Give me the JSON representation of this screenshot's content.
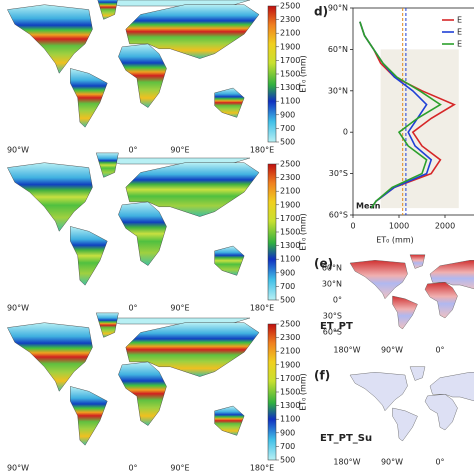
{
  "maps": [
    {
      "colorbar_ticks": [
        500,
        700,
        900,
        1100,
        1300,
        1500,
        1700,
        1900,
        2100,
        2300,
        2500
      ],
      "colorbar_label": "ET₀ (mm)",
      "xticks": [
        "90°W",
        "0°",
        "90°E",
        "180°E"
      ]
    },
    {
      "colorbar_ticks": [
        500,
        700,
        900,
        1100,
        1300,
        1500,
        1700,
        1900,
        2100,
        2300,
        2500
      ],
      "colorbar_label": "ET₀ (mm)",
      "xticks": [
        "90°W",
        "0°",
        "90°E",
        "180°E"
      ]
    },
    {
      "colorbar_ticks": [
        500,
        700,
        900,
        1100,
        1300,
        1500,
        1700,
        1900,
        2100,
        2300,
        2500
      ],
      "colorbar_label": "ET₀ (mm)",
      "xticks": [
        "90°W",
        "0°",
        "90°E",
        "180°E"
      ]
    }
  ],
  "small_maps": [
    {
      "label": "(e)",
      "name": "ET_PT",
      "yticks": [
        "60°N",
        "30°N",
        "0°",
        "30°S",
        "60°S"
      ],
      "xticks": [
        "180°W",
        "90°W",
        "0°"
      ]
    },
    {
      "label": "(f)",
      "name": "ET_PT_Su",
      "xticks": [
        "180°W",
        "90°W",
        "0°"
      ]
    }
  ],
  "chart_data": {
    "type": "line",
    "label": "d)",
    "x_label": "ET₀ (mm)",
    "annotation": "Mean",
    "latitude": [
      80,
      70,
      60,
      50,
      40,
      30,
      20,
      10,
      0,
      -10,
      -20,
      -30,
      -40,
      -50,
      -55
    ],
    "series": [
      {
        "name": "E",
        "color": "#d62728",
        "values": [
          150,
          250,
          450,
          600,
          900,
          1500,
          2200,
          1700,
          1300,
          1500,
          1900,
          1700,
          900,
          500,
          400
        ]
      },
      {
        "name": "E",
        "color": "#1f3fd6",
        "values": [
          150,
          250,
          450,
          650,
          900,
          1300,
          1600,
          1400,
          1200,
          1350,
          1700,
          1600,
          900,
          500,
          400
        ]
      },
      {
        "name": "E",
        "color": "#2ca02c",
        "values": [
          150,
          250,
          450,
          650,
          950,
          1450,
          1900,
          1400,
          1000,
          1200,
          1600,
          1500,
          850,
          500,
          400
        ]
      }
    ],
    "mean_lines": [
      {
        "color": "#e08a1e",
        "value": 1080
      },
      {
        "color": "#1f3fd6",
        "value": 1150
      }
    ],
    "xlim": [
      0,
      2600
    ],
    "xticks": [
      0,
      1000,
      2000
    ],
    "ylim": [
      -60,
      90
    ],
    "yticks": [
      {
        "value": 90,
        "label": "90°N"
      },
      {
        "value": 60,
        "label": "60°N"
      },
      {
        "value": 30,
        "label": "30°N"
      },
      0,
      {
        "value": -30,
        "label": "30°S"
      },
      {
        "value": -60,
        "label": "60°S"
      }
    ]
  }
}
